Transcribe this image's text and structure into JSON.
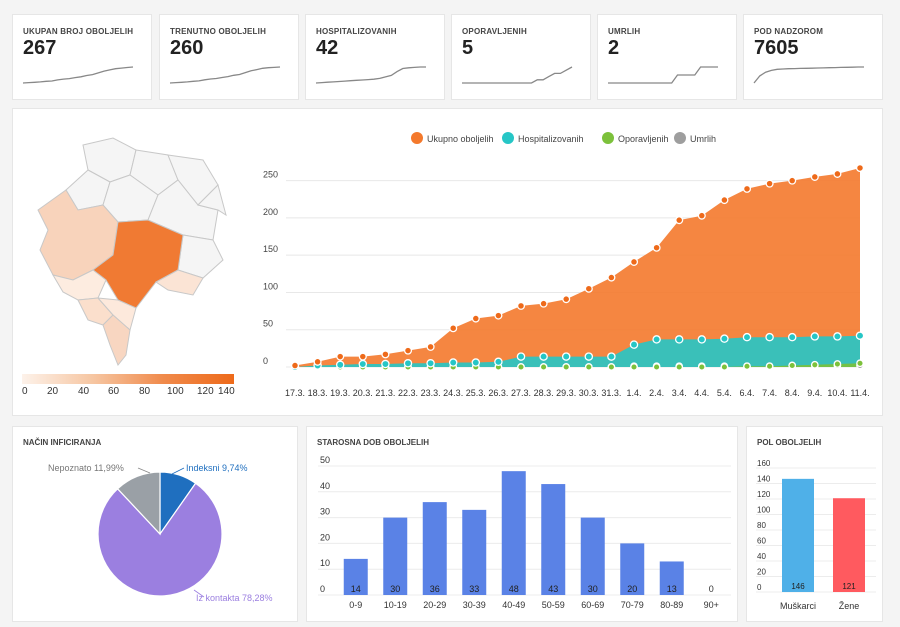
{
  "kpis": [
    {
      "label": "UKUPAN BROJ OBOLJELIH",
      "value": "267",
      "spark": [
        0,
        3,
        6,
        9,
        14,
        17,
        26,
        33,
        37,
        45,
        52,
        63,
        70,
        85,
        100,
        110,
        120,
        125,
        130,
        134
      ]
    },
    {
      "label": "TRENUTNO OBOLJELIH",
      "value": "260",
      "spark": [
        0,
        3,
        6,
        9,
        14,
        17,
        26,
        33,
        37,
        45,
        52,
        63,
        70,
        85,
        100,
        110,
        120,
        125,
        128,
        131
      ]
    },
    {
      "label": "HOSPITALIZOVANIH",
      "value": "42",
      "spark": [
        0,
        1,
        2,
        3,
        4,
        5,
        6,
        7,
        8,
        9,
        10,
        12,
        16,
        20,
        30,
        38,
        40,
        41,
        42,
        42
      ]
    },
    {
      "label": "OPORAVLJENIH",
      "value": "5",
      "spark": [
        0,
        0,
        0,
        0,
        0,
        0,
        0,
        0,
        0,
        0,
        0,
        0,
        0,
        1,
        1,
        2,
        3,
        3,
        4,
        5
      ]
    },
    {
      "label": "UMRLIH",
      "value": "2",
      "spark": [
        0,
        0,
        0,
        0,
        0,
        0,
        0,
        0,
        0,
        0,
        0,
        0,
        1,
        1,
        1,
        1,
        2,
        2,
        2,
        2
      ]
    },
    {
      "label": "POD NADZOROM",
      "value": "7605",
      "spark": [
        2000,
        4500,
        5800,
        6400,
        6800,
        6900,
        7000,
        7050,
        7100,
        7150,
        7200,
        7250,
        7300,
        7350,
        7400,
        7450,
        7500,
        7550,
        7600,
        7605
      ]
    }
  ],
  "map": {
    "scale_ticks": [
      "0",
      "20",
      "40",
      "60",
      "80",
      "100",
      "120",
      "140"
    ]
  },
  "main_chart": {
    "legend": [
      {
        "name": "Ukupno oboljelih",
        "color": "#f4792c"
      },
      {
        "name": "Hospitalizovanih",
        "color": "#26c6c6"
      },
      {
        "name": "Oporavljenih",
        "color": "#7cc13b"
      },
      {
        "name": "Umrlih",
        "color": "#9e9e9e"
      }
    ]
  },
  "infection": {
    "title": "NAČIN INFICIRANJA",
    "labels": {
      "unknown": "Nepoznato 11,99%",
      "imported": "Indeksni 9,74%",
      "contact": "Iz kontakta 78,28%"
    }
  },
  "age": {
    "title": "STAROSNA DOB OBOLJELIH"
  },
  "gender": {
    "title": "POL OBOLJELIH"
  },
  "chart_data": [
    {
      "type": "area",
      "categories": [
        "17.3.",
        "18.3.",
        "19.3.",
        "20.3.",
        "21.3.",
        "22.3.",
        "23.3.",
        "24.3.",
        "25.3.",
        "26.3.",
        "27.3.",
        "28.3.",
        "29.3.",
        "30.3.",
        "31.3.",
        "1.4.",
        "2.4.",
        "3.4.",
        "4.4.",
        "5.4.",
        "6.4.",
        "7.4.",
        "8.4.",
        "9.4.",
        "10.4.",
        "11.4."
      ],
      "series": [
        {
          "name": "Ukupno oboljelih",
          "values": [
            2,
            7,
            14,
            14,
            17,
            22,
            27,
            52,
            65,
            69,
            82,
            85,
            91,
            105,
            120,
            141,
            160,
            197,
            203,
            224,
            239,
            246,
            250,
            255,
            259,
            267
          ]
        },
        {
          "name": "Hospitalizovanih",
          "values": [
            0,
            2,
            3,
            4,
            4,
            5,
            5,
            6,
            6,
            7,
            14,
            14,
            14,
            14,
            14,
            30,
            37,
            37,
            37,
            38,
            40,
            40,
            40,
            41,
            41,
            42
          ]
        },
        {
          "name": "Oporavljenih",
          "values": [
            0,
            0,
            0,
            0,
            0,
            0,
            0,
            0,
            0,
            0,
            0,
            0,
            0,
            0,
            0,
            0,
            0,
            0,
            0,
            0,
            1,
            1,
            2,
            3,
            4,
            5
          ]
        },
        {
          "name": "Umrlih",
          "values": [
            0,
            0,
            0,
            0,
            0,
            0,
            0,
            0,
            0,
            0,
            0,
            0,
            0,
            0,
            0,
            1,
            1,
            1,
            1,
            1,
            1,
            1,
            2,
            2,
            2,
            2
          ]
        }
      ],
      "ylim": [
        0,
        275
      ],
      "yticks": [
        0,
        50,
        100,
        150,
        200,
        250
      ],
      "legend": "top",
      "grid": true
    },
    {
      "type": "pie",
      "labels": [
        "Indeksni",
        "Iz kontakta",
        "Nepoznato"
      ],
      "values": [
        9.74,
        78.28,
        11.99
      ],
      "colors": [
        "#1f6fbf",
        "#9b7fe0",
        "#9aa0a6"
      ]
    },
    {
      "type": "bar",
      "title": "STAROSNA DOB OBOLJELIH",
      "categories": [
        "0-9",
        "10-19",
        "20-29",
        "30-39",
        "40-49",
        "50-59",
        "60-69",
        "70-79",
        "80-89",
        "90+"
      ],
      "values": [
        14,
        30,
        36,
        33,
        48,
        43,
        30,
        20,
        13,
        0
      ],
      "ylim": [
        0,
        50
      ],
      "yticks": [
        0,
        10,
        20,
        30,
        40,
        50
      ],
      "color": "#5a82e6"
    },
    {
      "type": "bar",
      "title": "POL OBOLJELIH",
      "categories": [
        "Muškarci",
        "Žene"
      ],
      "values": [
        146,
        121
      ],
      "ylim": [
        0,
        160
      ],
      "yticks": [
        0,
        20,
        40,
        60,
        80,
        100,
        120,
        140,
        160
      ],
      "colors": [
        "#4fb0e8",
        "#ff5a5f"
      ]
    }
  ]
}
